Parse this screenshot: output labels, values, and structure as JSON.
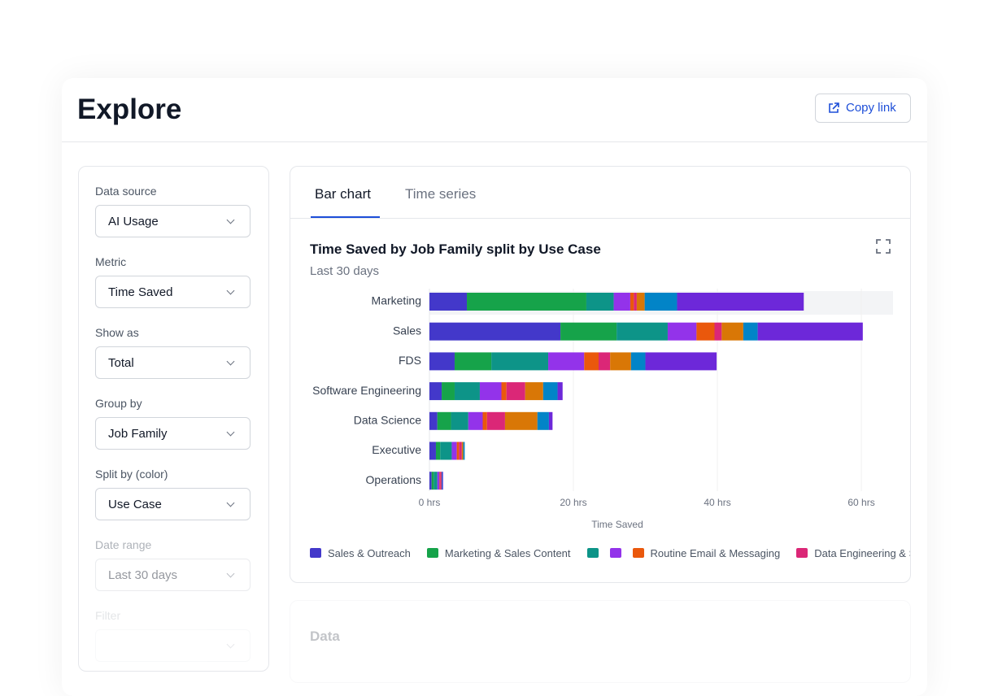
{
  "header": {
    "title": "Explore",
    "button": "Copy link"
  },
  "sidebar": {
    "fields": [
      {
        "label": "Data source",
        "value": "AI Usage"
      },
      {
        "label": "Metric",
        "value": "Time Saved"
      },
      {
        "label": "Show as",
        "value": "Total"
      },
      {
        "label": "Group by",
        "value": "Job Family"
      },
      {
        "label": "Split by (color)",
        "value": "Use Case"
      },
      {
        "label": "Date range",
        "value": "Last 30 days"
      },
      {
        "label": "Filter"
      }
    ]
  },
  "tabs": [
    "Bar chart",
    "Time series"
  ],
  "data_panel": {
    "title": "Data"
  },
  "chart_data": {
    "type": "bar",
    "orientation": "horizontal",
    "stacked": true,
    "title": "Time Saved by Job Family split by Use Case",
    "subtitle": "Last 30 days",
    "categories": [
      "Marketing",
      "Sales",
      "FDS",
      "Software Engineering",
      "Data Science",
      "Executive",
      "Operations"
    ],
    "series": [
      {
        "name": "Sales & Outreach",
        "color": "#4338ca",
        "values": [
          5.2,
          18.2,
          3.5,
          1.7,
          1.1,
          0.9,
          0.3
        ]
      },
      {
        "name": "Marketing & Sales Content",
        "color": "#16a34a",
        "values": [
          16.6,
          7.8,
          5.1,
          1.8,
          1.9,
          0.6,
          0.3
        ]
      },
      {
        "color": "#0d9488",
        "values": [
          3.8,
          7.1,
          7.9,
          3.5,
          2.4,
          1.6,
          0.5
        ]
      },
      {
        "color": "#9333ea",
        "values": [
          2.3,
          4.0,
          5.0,
          3.0,
          2.0,
          0.7,
          0.3
        ]
      },
      {
        "name": "Routine Email & Messaging",
        "color": "#ea580c",
        "values": [
          0.5,
          2.5,
          2.0,
          0.7,
          0.6,
          0.3,
          0.1
        ]
      },
      {
        "name": "Data Engineering & SQL",
        "color": "#db2777",
        "values": [
          0.4,
          1.0,
          1.6,
          2.6,
          2.5,
          0.4,
          0.2
        ]
      },
      {
        "color": "#d97706",
        "values": [
          1.1,
          3.0,
          2.9,
          2.5,
          4.5,
          0.2,
          0
        ]
      },
      {
        "color": "#0284c7",
        "values": [
          4.5,
          2.0,
          2.0,
          2.0,
          1.6,
          0.2,
          0.1
        ]
      },
      {
        "color": "#6d28d9",
        "values": [
          17.6,
          14.6,
          9.9,
          0.7,
          0.5,
          0,
          0.1
        ]
      }
    ],
    "xlim": [
      0,
      64.4
    ],
    "xticks": [
      {
        "value": 0,
        "label": "0 hrs"
      },
      {
        "value": 20,
        "label": "20 hrs"
      },
      {
        "value": 40,
        "label": "40 hrs"
      },
      {
        "value": 60,
        "label": "60 hrs"
      }
    ],
    "xlabel": "Time Saved",
    "grid": true
  }
}
